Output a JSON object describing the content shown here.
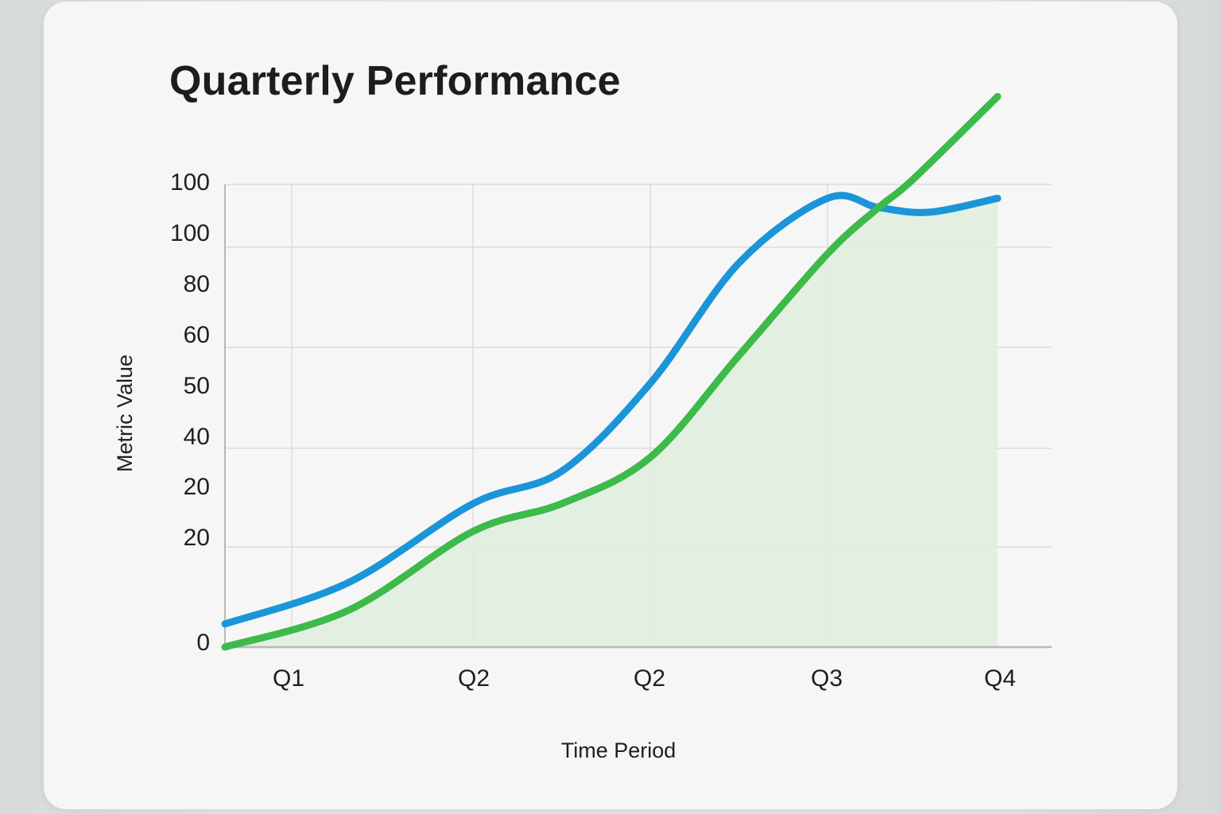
{
  "title": "Quarterly Performance",
  "axes": {
    "xlabel": "Time Period",
    "ylabel": "Metric Value",
    "x_ticks": [
      "Q1",
      "Q2",
      "Q2",
      "Q3",
      "Q4"
    ],
    "y_ticks": [
      "100",
      "100",
      "80",
      "60",
      "50",
      "40",
      "20",
      "20",
      "0"
    ]
  },
  "colors": {
    "blue_series": "#1a96d8",
    "green_series": "#3dba4a",
    "green_fill": "#dfeedd",
    "grid": "#dcdcdc",
    "axis": "#b8b8b8",
    "card_bg": "#f6f6f6",
    "text": "#1e1f21"
  },
  "chart_data": {
    "type": "line",
    "title": "Quarterly Performance",
    "xlabel": "Time Period",
    "ylabel": "Metric Value",
    "categories": [
      "Q1",
      "Q2",
      "Q2",
      "Q3",
      "Q4"
    ],
    "y_tick_labels": [
      "100",
      "100",
      "80",
      "60",
      "50",
      "40",
      "20",
      "20",
      "0"
    ],
    "ylim": [
      0,
      100
    ],
    "grid": true,
    "legend": null,
    "series": [
      {
        "name": "Blue series",
        "color": "#1a96d8",
        "fill": false,
        "x": [
          0,
          0.5,
          1,
          1.5,
          2,
          2.5,
          3,
          3.3,
          3.6,
          4
        ],
        "values": [
          5,
          14,
          31,
          38,
          57,
          83,
          97,
          95,
          94,
          97
        ]
      },
      {
        "name": "Green series",
        "color": "#3dba4a",
        "fill": true,
        "x": [
          0,
          0.5,
          1,
          1.5,
          2,
          2.5,
          3,
          3.3,
          3.5,
          4
        ],
        "values": [
          0,
          8,
          25,
          31,
          41,
          63,
          85,
          95,
          101,
          119
        ]
      }
    ]
  }
}
